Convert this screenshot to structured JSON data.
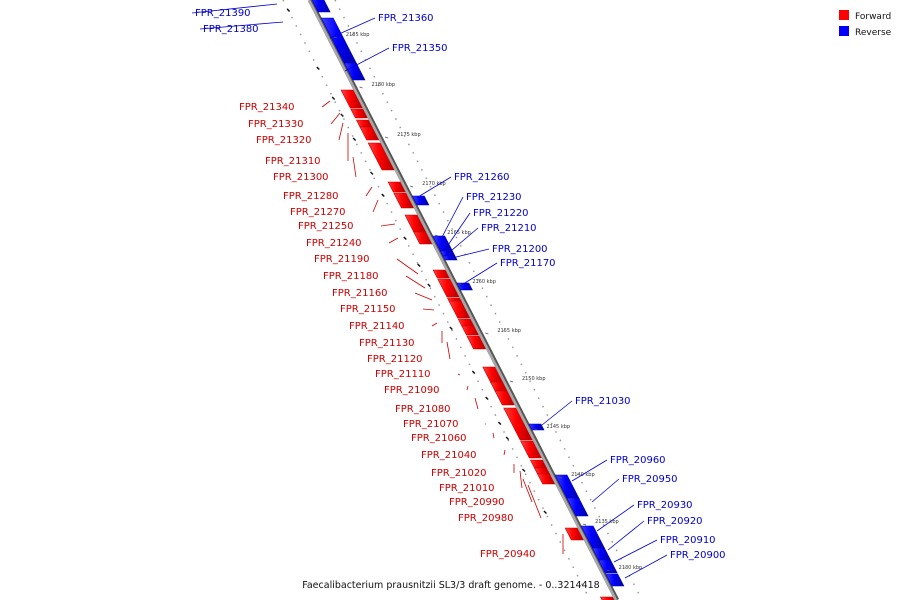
{
  "caption": "Faecalibacterium prausnitzii SL3/3 draft genome. - 0..3214418",
  "legend": [
    {
      "label": "Forward",
      "color": "#ff0000"
    },
    {
      "label": "Reverse",
      "color": "#0000ff"
    }
  ],
  "colors": {
    "forward": "#ff0000",
    "reverse": "#0000ff",
    "backbone": "#888888"
  },
  "kbp_labels": [
    "2185 kbp",
    "2180 kbp",
    "2175 kbp",
    "2170 kbp",
    "2165 kbp",
    "2160 kbp",
    "2155 kbp",
    "2150 kbp",
    "2145 kbp",
    "2140 kbp",
    "2135 kbp",
    "2130 kbp"
  ],
  "forward_labels": [
    "FPR_21340",
    "FPR_21330",
    "FPR_21320",
    "FPR_21310",
    "FPR_21300",
    "FPR_21280",
    "FPR_21270",
    "FPR_21250",
    "FPR_21240",
    "FPR_21190",
    "FPR_21180",
    "FPR_21160",
    "FPR_21150",
    "FPR_21140",
    "FPR_21130",
    "FPR_21120",
    "FPR_21110",
    "FPR_21090",
    "FPR_21080",
    "FPR_21070",
    "FPR_21060",
    "FPR_21040",
    "FPR_21020",
    "FPR_21010",
    "FPR_20990",
    "FPR_20980",
    "FPR_20940"
  ],
  "reverse_labels": [
    "FPR_21390",
    "FPR_21380",
    "FPR_21360",
    "FPR_21350",
    "FPR_21260",
    "FPR_21230",
    "FPR_21220",
    "FPR_21210",
    "FPR_21200",
    "FPR_21170",
    "FPR_21030",
    "FPR_20960",
    "FPR_20950",
    "FPR_20930",
    "FPR_20920",
    "FPR_20910",
    "FPR_20900"
  ]
}
